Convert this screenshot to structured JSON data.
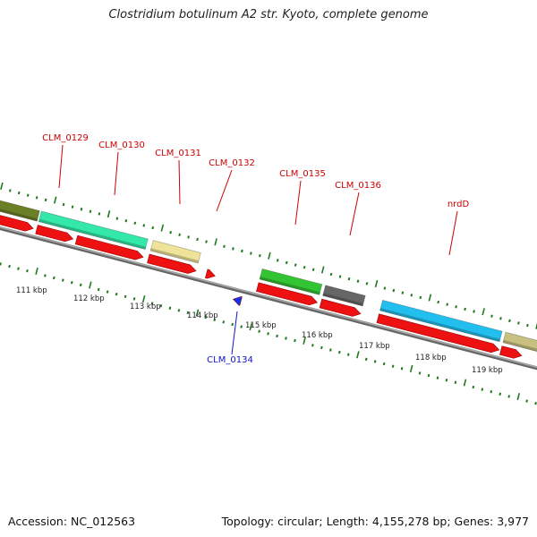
{
  "title": "Clostridium botulinum A2 str. Kyoto, complete genome",
  "footer": {
    "accession": "Accession: NC_012563",
    "stats": "Topology: circular; Length: 4,155,278 bp; Genes: 3,977"
  },
  "colors": {
    "backbone": "#8a8a8a",
    "tick": "#1f7a1f",
    "cds": "#ee1111",
    "label_red": "#cc0000",
    "label_blue": "#1111cc",
    "ruler_text": "#222222"
  },
  "ruler": {
    "unit": "kbp",
    "labels": [
      "111 kbp",
      "112 kbp",
      "113 kbp",
      "114 kbp",
      "115 kbp",
      "116 kbp",
      "117 kbp",
      "118 kbp",
      "119 kbp"
    ]
  },
  "genes": [
    {
      "name": "",
      "color": "#6b7f26"
    },
    {
      "name": "CLM_0129",
      "color": "#33e8a8"
    },
    {
      "name": "CLM_0130",
      "color": "#33e8a8"
    },
    {
      "name": "CLM_0131",
      "color": "#efe39a"
    },
    {
      "name": "CLM_0132",
      "color": "#ee1111"
    },
    {
      "name": "CLM_0134",
      "color": "#1133ee"
    },
    {
      "name": "CLM_0135",
      "color": "#33c433"
    },
    {
      "name": "CLM_0136",
      "color": "#666666"
    },
    {
      "name": "nrdD",
      "color": "#22bfee"
    },
    {
      "name": "",
      "color": "#c8c080"
    }
  ]
}
